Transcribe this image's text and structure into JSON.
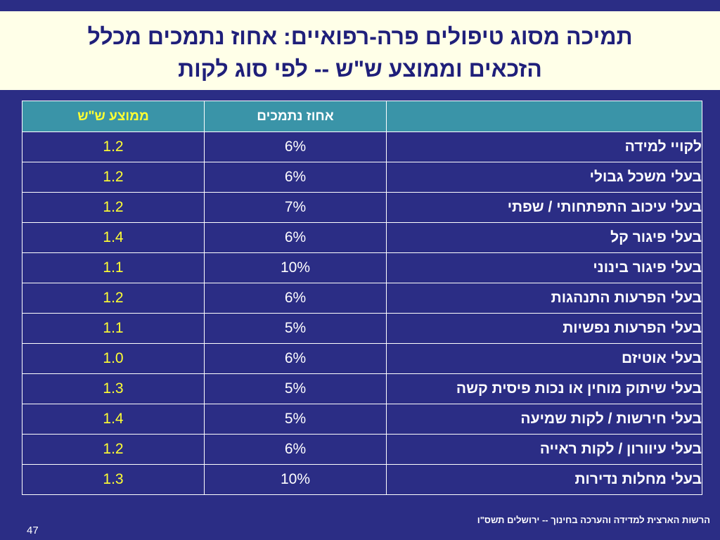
{
  "title": {
    "line1": "תמיכה מסוג טיפולים פרה-רפואיים: אחוז נתמכים מכלל",
    "line2": "הזכאים וממוצע ש\"ש -- לפי סוג לקות"
  },
  "table": {
    "headers": {
      "label": "",
      "percent": "אחוז נתמכים",
      "average": "ממוצע ש\"ש"
    },
    "rows": [
      {
        "label": "לקויי למידה",
        "percent": "6%",
        "average": "1.2"
      },
      {
        "label": "בעלי משכל גבולי",
        "percent": "6%",
        "average": "1.2"
      },
      {
        "label": "בעלי עיכוב התפתחותי / שפתי",
        "percent": "7%",
        "average": "1.2"
      },
      {
        "label": "בעלי פיגור קל",
        "percent": "6%",
        "average": "1.4"
      },
      {
        "label": "בעלי פיגור בינוני",
        "percent": "10%",
        "average": "1.1"
      },
      {
        "label": "בעלי הפרעות התנהגות",
        "percent": "6%",
        "average": "1.2"
      },
      {
        "label": "בעלי הפרעות נפשיות",
        "percent": "5%",
        "average": "1.1"
      },
      {
        "label": "בעלי אוטיזם",
        "percent": "6%",
        "average": "1.0"
      },
      {
        "label": "בעלי שיתוק מוחין או נכות פיסית קשה",
        "percent": "5%",
        "average": "1.3"
      },
      {
        "label": "בעלי חירשות / לקות שמיעה",
        "percent": "5%",
        "average": "1.4"
      },
      {
        "label": "בעלי עיוורון / לקות ראייה",
        "percent": "6%",
        "average": "1.2"
      },
      {
        "label": "בעלי מחלות נדירות",
        "percent": "10%",
        "average": "1.3"
      }
    ]
  },
  "footer": {
    "text": "הרשות הארצית למדידה והערכה בחינוך -- ירושלים תשס\"ו",
    "slide_number": "47"
  },
  "colors": {
    "background": "#2b2d85",
    "title_background": "#ffffe8",
    "title_text": "#1f1f7a",
    "header_background": "#3a94a8",
    "average_text": "#ffff33",
    "text": "#ffffff"
  }
}
